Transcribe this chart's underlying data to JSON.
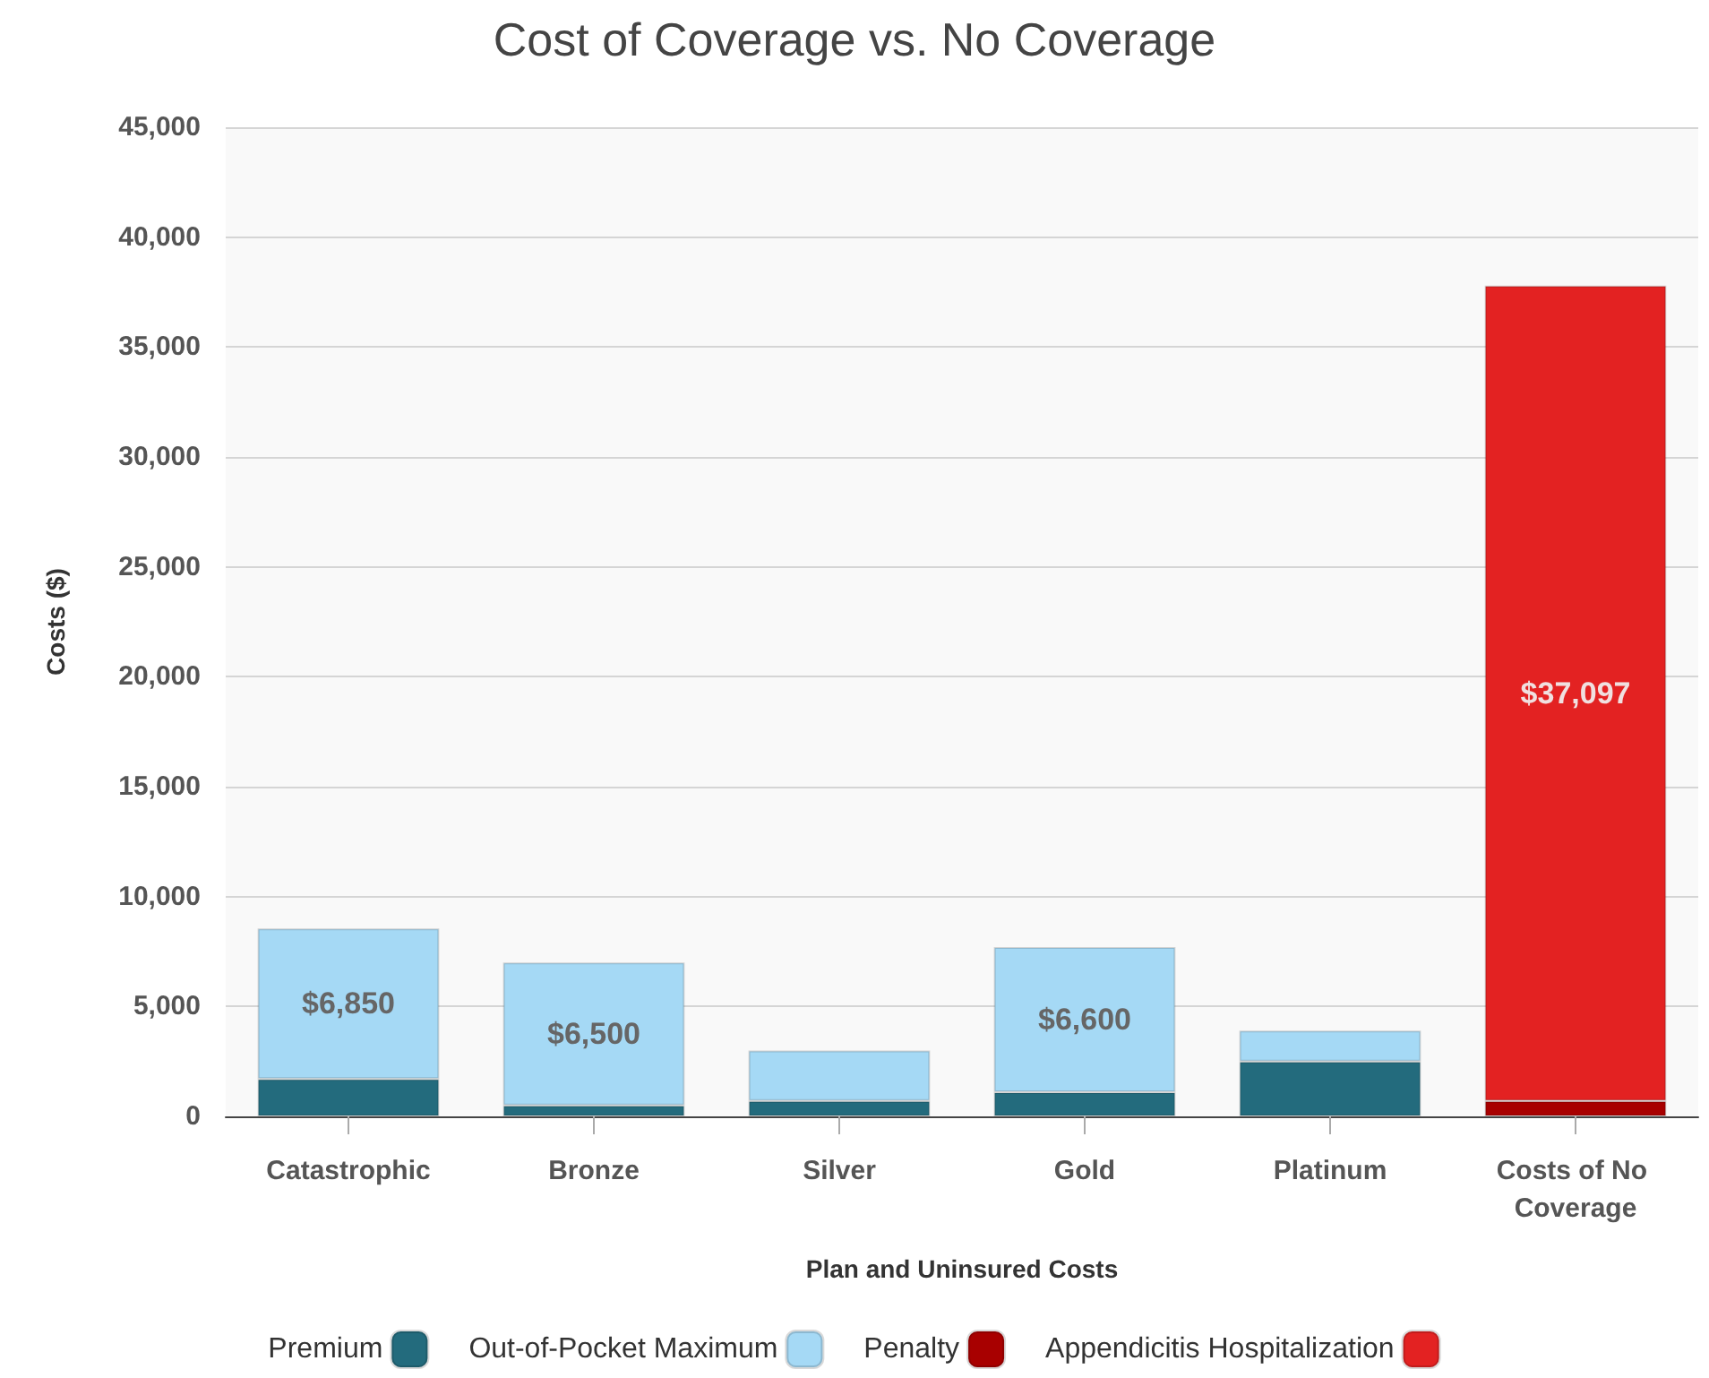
{
  "chart_data": {
    "type": "bar",
    "title": "Cost of Coverage vs. No Coverage",
    "xlabel": "Plan and Uninsured Costs",
    "ylabel": "Costs ($)",
    "categories": [
      "Catastrophic",
      "Bronze",
      "Silver",
      "Gold",
      "Platinum",
      "Costs of No Coverage"
    ],
    "stacked": true,
    "series": [
      {
        "name": "Premium",
        "color": "#236b7d",
        "values": [
          1700,
          500,
          700,
          1100,
          2500,
          null
        ]
      },
      {
        "name": "Out-of-Pocket Maximum",
        "color": "#a5d9f5",
        "values": [
          6850,
          6500,
          2300,
          6600,
          1400,
          null
        ],
        "value_labels": [
          "$6,850",
          "$6,500",
          null,
          "$6,600",
          null,
          null
        ]
      },
      {
        "name": "Penalty",
        "color": "#a80000",
        "values": [
          null,
          null,
          null,
          null,
          null,
          700
        ]
      },
      {
        "name": "Appendicitis Hospitalization",
        "color": "#e32222",
        "values": [
          null,
          null,
          null,
          null,
          null,
          37097
        ],
        "value_labels": [
          null,
          null,
          null,
          null,
          null,
          "$37,097"
        ]
      }
    ],
    "ylim": [
      0,
      45000
    ],
    "yticks": [
      0,
      {
        "value": 5000,
        "label": "5,000"
      },
      {
        "value": 10000,
        "label": "10,000"
      },
      {
        "value": 15000,
        "label": "15,000"
      },
      {
        "value": 20000,
        "label": "20,000"
      },
      {
        "value": 25000,
        "label": "25,000"
      },
      {
        "value": 30000,
        "label": "30,000"
      },
      {
        "value": 35000,
        "label": "35,000"
      },
      {
        "value": 40000,
        "label": "40,000"
      },
      {
        "value": 45000,
        "label": "45,000"
      }
    ],
    "grid": "y",
    "legend": "bottom"
  }
}
